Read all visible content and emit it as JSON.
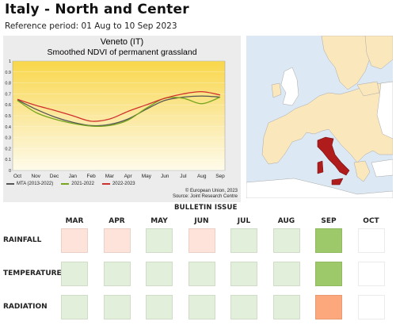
{
  "header": {
    "title": "Italy - North and Center",
    "reference_period": "Reference period: 01 Aug to 10 Sep 2023"
  },
  "chart": {
    "region": "Veneto (IT)",
    "subtitle": "Smoothed NDVI of permanent grassland",
    "credit_line1": "© European Union, 2023",
    "credit_line2": "Source: Joint Research Centre"
  },
  "chart_data": {
    "type": "line",
    "title": "Veneto (IT)",
    "subtitle": "Smoothed NDVI of permanent grassland",
    "xlabel": "",
    "ylabel": "",
    "x": [
      "Oct",
      "Nov",
      "Dec",
      "Jan",
      "Feb",
      "Mar",
      "Apr",
      "May",
      "Jun",
      "Jul",
      "Aug",
      "Sep"
    ],
    "ylim": [
      0,
      1
    ],
    "yticks": [
      "0",
      "0.1",
      "0.2",
      "0.3",
      "0.4",
      "0.5",
      "0.6",
      "0.7",
      "0.8",
      "0.9",
      "1"
    ],
    "background": "yellow gradient",
    "legend_position": "bottom-left",
    "series": [
      {
        "name": "MTA (2013-2022)",
        "color": "#555555",
        "values": [
          0.645,
          0.56,
          0.49,
          0.44,
          0.41,
          0.42,
          0.47,
          0.56,
          0.64,
          0.67,
          0.68,
          0.67
        ]
      },
      {
        "name": "2021-2022",
        "color": "#77a51e",
        "values": [
          0.64,
          0.53,
          0.47,
          0.43,
          0.405,
          0.41,
          0.46,
          0.57,
          0.66,
          0.66,
          0.61,
          0.67
        ]
      },
      {
        "name": "2022-2023",
        "color": "#d0312d",
        "values": [
          0.65,
          0.595,
          0.55,
          0.5,
          0.45,
          0.47,
          0.54,
          0.6,
          0.66,
          0.7,
          0.72,
          0.69
        ]
      }
    ]
  },
  "bulletin": {
    "header": "BULLETIN ISSUE",
    "months": [
      "MAR",
      "APR",
      "MAY",
      "JUN",
      "JUL",
      "AUG",
      "SEP",
      "OCT"
    ],
    "rows": [
      {
        "label": "RAINFALL",
        "cells": [
          "#fde3da",
          "#fde3da",
          "#e2efda",
          "#fde3da",
          "#e2efda",
          "#e2efda",
          "#9dc96b",
          "#ffffff"
        ]
      },
      {
        "label": "TEMPERATURE",
        "cells": [
          "#e2efda",
          "#e2efda",
          "#e2efda",
          "#e2efda",
          "#e2efda",
          "#e2efda",
          "#9dc96b",
          "#ffffff"
        ]
      },
      {
        "label": "RADIATION",
        "cells": [
          "#e2efda",
          "#e2efda",
          "#e2efda",
          "#e2efda",
          "#e2efda",
          "#e2efda",
          "#fca87c",
          "#ffffff"
        ]
      }
    ]
  },
  "map": {
    "sea_color": "#dce8f3",
    "land_color": "#fbe7bc",
    "highlight_color": "#b01c1c"
  }
}
